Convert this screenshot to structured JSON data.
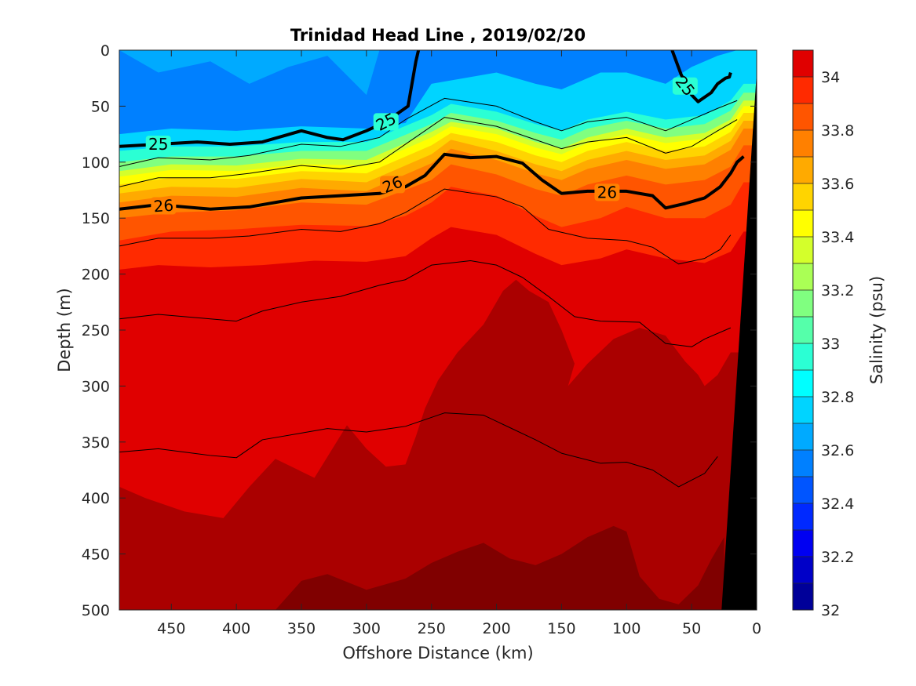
{
  "chart_data": {
    "type": "heatmap",
    "title": "Trinidad Head Line , 2019/02/20",
    "xlabel": "Offshore Distance (km)",
    "ylabel": "Depth (m)",
    "colorbar_label": "Salinity (psu)",
    "xlim": [
      490,
      0
    ],
    "ylim": [
      500,
      0
    ],
    "x_ticks": [
      450,
      400,
      350,
      300,
      250,
      200,
      150,
      100,
      50,
      0
    ],
    "y_ticks": [
      0,
      50,
      100,
      150,
      200,
      250,
      300,
      350,
      400,
      450,
      500
    ],
    "color_ticks": [
      32,
      32.2,
      32.4,
      32.6,
      32.8,
      33,
      33.2,
      33.4,
      33.6,
      33.8,
      34
    ],
    "color_levels": [
      32.0,
      32.1,
      32.2,
      32.3,
      32.4,
      32.5,
      32.6,
      32.7,
      32.8,
      32.9,
      33.0,
      33.1,
      33.2,
      33.3,
      33.4,
      33.5,
      33.6,
      33.7,
      33.8,
      33.9,
      34.0,
      34.1
    ],
    "level_colors": [
      "#000099",
      "#0000c8",
      "#0000f2",
      "#0029ff",
      "#0055ff",
      "#0080ff",
      "#00aaff",
      "#00d4ff",
      "#00ffff",
      "#2bffd4",
      "#55ffaa",
      "#80ff80",
      "#aaff55",
      "#d4ff2b",
      "#ffff00",
      "#ffd400",
      "#ffaa00",
      "#ff8000",
      "#ff5500",
      "#ff2a00",
      "#e00000",
      "#aa0000"
    ],
    "deep_salinity_patch": {
      "color": "#800000",
      "label": ">34.1"
    },
    "grid": false,
    "series": [
      {
        "name": "salinity_32.5",
        "x": [
          490,
          460,
          420,
          390,
          360,
          330,
          300,
          290
        ],
        "y": [
          0,
          20,
          10,
          30,
          15,
          5,
          40,
          0
        ]
      },
      {
        "name": "salinity_32.7",
        "x": [
          490,
          450,
          400,
          350,
          300,
          270,
          250,
          200,
          170,
          150,
          120,
          100,
          70,
          50,
          30,
          15
        ],
        "y": [
          75,
          70,
          72,
          68,
          70,
          65,
          30,
          20,
          30,
          35,
          20,
          20,
          30,
          15,
          5,
          0
        ]
      },
      {
        "name": "salinity_32.9",
        "x": [
          490,
          450,
          400,
          350,
          300,
          250,
          235,
          200,
          170,
          150,
          130,
          100,
          70,
          40,
          20,
          10
        ],
        "y": [
          90,
          86,
          86,
          82,
          82,
          58,
          48,
          55,
          66,
          72,
          62,
          55,
          62,
          58,
          45,
          30
        ]
      },
      {
        "name": "salinity_33.1",
        "x": [
          490,
          450,
          400,
          350,
          300,
          250,
          235,
          200,
          170,
          150,
          130,
          100,
          70,
          40,
          20,
          10
        ],
        "y": [
          100,
          95,
          95,
          90,
          90,
          66,
          56,
          63,
          74,
          80,
          70,
          63,
          70,
          66,
          54,
          38
        ]
      },
      {
        "name": "salinity_33.3",
        "x": [
          490,
          450,
          400,
          350,
          300,
          250,
          235,
          200,
          170,
          150,
          130,
          100,
          70,
          40,
          20,
          10
        ],
        "y": [
          108,
          102,
          103,
          97,
          98,
          73,
          64,
          70,
          82,
          88,
          78,
          70,
          78,
          74,
          62,
          45
        ]
      },
      {
        "name": "salinity_33.4",
        "x": [
          490,
          450,
          400,
          350,
          300,
          250,
          235,
          200,
          170,
          150,
          130,
          100,
          70,
          40,
          20,
          10
        ],
        "y": [
          113,
          107,
          108,
          102,
          103,
          78,
          68,
          75,
          87,
          93,
          83,
          75,
          83,
          79,
          67,
          50
        ]
      },
      {
        "name": "salinity_33.5",
        "x": [
          490,
          450,
          400,
          350,
          300,
          250,
          235,
          200,
          170,
          150,
          130,
          100,
          70,
          40,
          20,
          10
        ],
        "y": [
          120,
          114,
          115,
          108,
          110,
          85,
          74,
          82,
          94,
          100,
          90,
          82,
          90,
          86,
          73,
          56
        ]
      },
      {
        "name": "salinity_33.6",
        "x": [
          490,
          450,
          400,
          350,
          300,
          250,
          235,
          200,
          170,
          150,
          130,
          100,
          70,
          40,
          20,
          10
        ],
        "y": [
          128,
          122,
          123,
          115,
          118,
          93,
          80,
          90,
          102,
          108,
          98,
          90,
          98,
          94,
          81,
          63
        ]
      },
      {
        "name": "salinity_33.7",
        "x": [
          490,
          450,
          400,
          350,
          300,
          250,
          235,
          200,
          170,
          150,
          130,
          100,
          70,
          40,
          20,
          10
        ],
        "y": [
          136,
          130,
          131,
          123,
          126,
          101,
          88,
          98,
          110,
          116,
          106,
          98,
          106,
          102,
          89,
          70
        ]
      },
      {
        "name": "salinity_33.8",
        "x": [
          490,
          450,
          400,
          350,
          300,
          250,
          235,
          200,
          170,
          150,
          130,
          100,
          70,
          40,
          20,
          10
        ],
        "y": [
          150,
          145,
          143,
          136,
          138,
          116,
          102,
          111,
          124,
          130,
          120,
          112,
          120,
          116,
          104,
          85
        ]
      },
      {
        "name": "salinity_33.9",
        "x": [
          490,
          450,
          400,
          350,
          300,
          270,
          250,
          235,
          200,
          170,
          150,
          120,
          100,
          70,
          40,
          20,
          10
        ],
        "y": [
          170,
          162,
          160,
          156,
          157,
          148,
          136,
          122,
          130,
          148,
          158,
          150,
          140,
          150,
          150,
          138,
          118
        ]
      },
      {
        "name": "salinity_34.0",
        "x": [
          490,
          460,
          420,
          380,
          340,
          300,
          270,
          250,
          235,
          200,
          170,
          150,
          120,
          100,
          70,
          40,
          20,
          10
        ],
        "y": [
          196,
          192,
          194,
          192,
          188,
          189,
          184,
          168,
          158,
          165,
          182,
          192,
          186,
          178,
          186,
          190,
          180,
          162
        ]
      },
      {
        "name": "salinity_34.1",
        "x": [
          490,
          470,
          440,
          410,
          390,
          370,
          340,
          315,
          300,
          285,
          270,
          262,
          255,
          245,
          230,
          210,
          195,
          185,
          175,
          160,
          150,
          140,
          145,
          130,
          110,
          90,
          70,
          55,
          45,
          40,
          30,
          20
        ],
        "y": [
          390,
          400,
          412,
          418,
          390,
          365,
          382,
          335,
          356,
          372,
          370,
          345,
          320,
          295,
          270,
          245,
          215,
          205,
          215,
          225,
          250,
          280,
          300,
          280,
          258,
          248,
          255,
          278,
          290,
          300,
          290,
          270
        ]
      },
      {
        "name": "salinity_34.2_patch",
        "x": [
          370,
          350,
          330,
          300,
          270,
          250,
          230,
          210,
          190,
          170,
          150,
          130,
          110,
          100,
          90,
          75,
          60,
          45,
          35,
          25
        ],
        "y": [
          500,
          474,
          468,
          482,
          472,
          458,
          448,
          440,
          454,
          460,
          450,
          435,
          425,
          430,
          470,
          490,
          495,
          478,
          455,
          435
        ]
      }
    ],
    "sigma_contours": [
      {
        "label": "25",
        "weight": "bold",
        "x": [
          490,
          460,
          430,
          405,
          380,
          350,
          330,
          318,
          300,
          285,
          268,
          265,
          262,
          260
        ],
        "y": [
          86,
          84,
          82,
          84,
          82,
          72,
          78,
          80,
          72,
          64,
          50,
          30,
          10,
          0
        ]
      },
      {
        "label": "25",
        "weight": "bold",
        "x": [
          65,
          58,
          50,
          45,
          35,
          30,
          24,
          21,
          20
        ],
        "y": [
          0,
          22,
          40,
          46,
          38,
          30,
          25,
          24,
          20
        ]
      },
      {
        "label": "26",
        "weight": "bold",
        "x": [
          490,
          460,
          420,
          390,
          350,
          320,
          290,
          270,
          255,
          240,
          220,
          200,
          180,
          165,
          150,
          130,
          100,
          80,
          70,
          55,
          40,
          28,
          20,
          15,
          10
        ],
        "y": [
          142,
          138,
          142,
          140,
          132,
          130,
          128,
          122,
          112,
          93,
          96,
          95,
          101,
          116,
          128,
          126,
          126,
          130,
          141,
          137,
          132,
          122,
          110,
          100,
          95
        ]
      },
      {
        "label": "",
        "weight": "thin",
        "x": [
          490,
          460,
          420,
          390,
          350,
          320,
          290,
          270,
          240,
          200,
          170,
          150,
          130,
          100,
          70,
          50,
          30,
          15
        ],
        "y": [
          104,
          96,
          98,
          94,
          84,
          86,
          78,
          62,
          43,
          50,
          64,
          72,
          64,
          60,
          72,
          62,
          52,
          45
        ]
      },
      {
        "label": "",
        "weight": "thin",
        "x": [
          490,
          460,
          420,
          390,
          350,
          320,
          290,
          270,
          240,
          200,
          170,
          150,
          130,
          100,
          70,
          50,
          30,
          15
        ],
        "y": [
          122,
          114,
          114,
          110,
          103,
          106,
          100,
          84,
          60,
          68,
          80,
          88,
          82,
          78,
          92,
          86,
          72,
          62
        ]
      },
      {
        "label": "",
        "weight": "thin",
        "x": [
          490,
          460,
          420,
          390,
          350,
          320,
          290,
          270,
          240,
          200,
          180,
          160,
          130,
          100,
          80,
          60,
          40,
          28,
          20
        ],
        "y": [
          175,
          168,
          168,
          166,
          160,
          162,
          155,
          145,
          124,
          131,
          140,
          160,
          168,
          170,
          176,
          191,
          186,
          178,
          165
        ]
      },
      {
        "label": "",
        "weight": "thin",
        "x": [
          490,
          460,
          420,
          400,
          380,
          350,
          320,
          290,
          270,
          250,
          220,
          200,
          180,
          160,
          140,
          120,
          90,
          70,
          50,
          40,
          20
        ],
        "y": [
          240,
          236,
          240,
          242,
          233,
          225,
          220,
          210,
          205,
          192,
          188,
          192,
          203,
          220,
          238,
          242,
          243,
          262,
          265,
          258,
          248
        ]
      },
      {
        "label": "",
        "weight": "thin",
        "x": [
          490,
          460,
          420,
          400,
          380,
          350,
          330,
          300,
          270,
          240,
          210,
          190,
          170,
          150,
          120,
          100,
          80,
          60,
          40,
          30
        ],
        "y": [
          359,
          356,
          362,
          364,
          348,
          342,
          338,
          341,
          336,
          324,
          326,
          337,
          348,
          360,
          369,
          368,
          375,
          390,
          378,
          363
        ]
      }
    ],
    "bathymetry": {
      "color": "#000000",
      "x": [
        27,
        0,
        0,
        26
      ],
      "y": [
        500,
        20,
        500,
        500
      ]
    }
  }
}
